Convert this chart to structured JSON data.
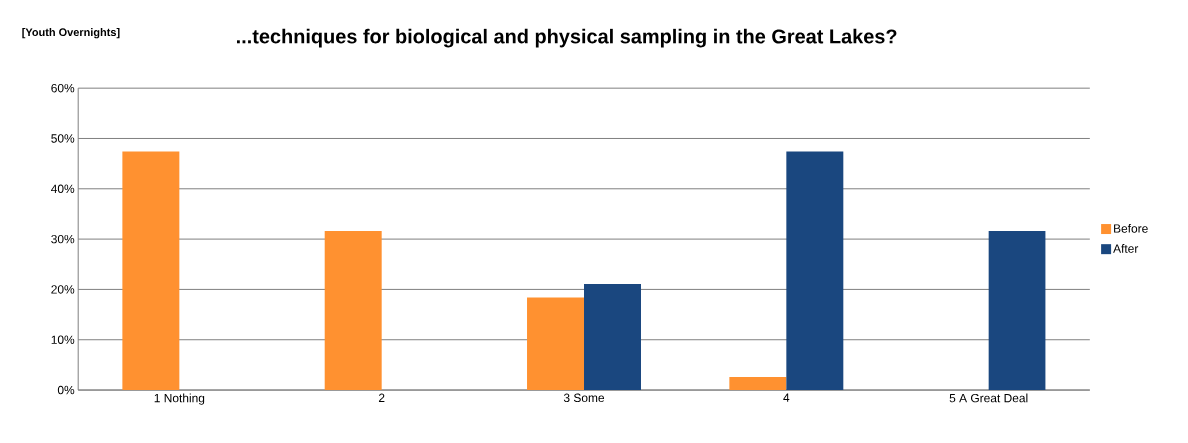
{
  "chart_data": {
    "type": "bar",
    "title": "...techniques for biological and physical sampling in the Great Lakes?",
    "subtitle": "[Youth Overnights]",
    "categories": [
      "1 Nothing",
      "2",
      "3 Some",
      "4",
      "5 A Great Deal"
    ],
    "series": [
      {
        "name": "Before",
        "color": "#ff9130",
        "values": [
          47.4,
          31.6,
          18.4,
          2.6,
          0
        ]
      },
      {
        "name": "After",
        "color": "#1a477f",
        "values": [
          0,
          0,
          21.1,
          47.4,
          31.6
        ]
      }
    ],
    "ylim": [
      0,
      60
    ],
    "yticks": [
      {
        "value": 0,
        "label": "0%"
      },
      {
        "value": 10,
        "label": "10%"
      },
      {
        "value": 20,
        "label": "20%"
      },
      {
        "value": 30,
        "label": "30%"
      },
      {
        "value": 40,
        "label": "40%"
      },
      {
        "value": 50,
        "label": "50%"
      },
      {
        "value": 60,
        "label": "60%"
      }
    ],
    "grid": "y",
    "legend": "right"
  }
}
